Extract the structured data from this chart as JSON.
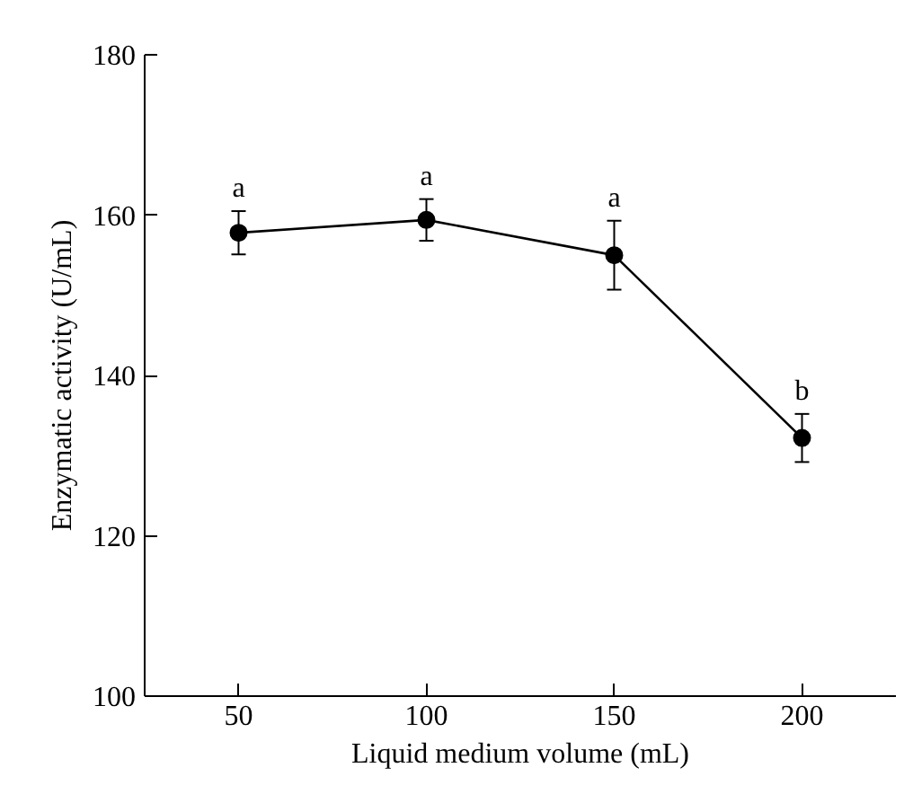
{
  "chart_data": {
    "type": "line",
    "xlabel": "Liquid medium volume (mL)",
    "ylabel": "Enzymatic activity (U/mL)",
    "x": [
      50,
      100,
      150,
      200
    ],
    "series": [
      {
        "color": "#000000",
        "values": [
          157.8,
          159.4,
          155.0,
          132.2
        ],
        "errors": [
          2.7,
          2.6,
          4.3,
          3.0
        ]
      }
    ],
    "xlim": [
      25,
      225
    ],
    "ylim": [
      100,
      180
    ],
    "xticks": [
      50,
      100,
      150,
      200
    ],
    "yticks": [
      100,
      120,
      140,
      160,
      180
    ],
    "marker": "circle",
    "line_style": "solid",
    "grid": false,
    "annotations": [
      "a",
      "a",
      "a",
      "b"
    ]
  }
}
